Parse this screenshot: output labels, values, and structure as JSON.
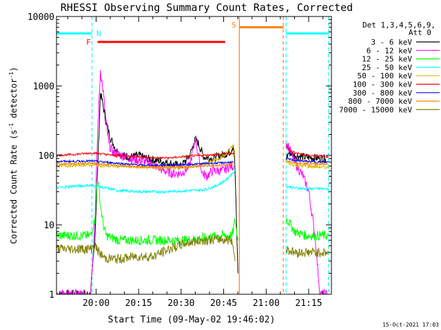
{
  "chart_data": {
    "type": "line",
    "title": "RHESSI Observing Summary Count Rates, Corrected",
    "xlabel": "Start Time (09-May-02 19:46:02)",
    "ylabel": "Corrected Count Rate (s^-1 detector^-1)",
    "ylabel_parts": {
      "main": "Corrected Count Rate (s",
      "exp1": "-1",
      "mid": " detector",
      "exp2": "-1",
      "end": ")"
    },
    "x_units": "minutes after 19:46:02",
    "xlim": [
      0,
      97
    ],
    "ylim": [
      1,
      10000
    ],
    "yscale": "log",
    "x_ticks": [
      {
        "x": 13.97,
        "label": "20:00"
      },
      {
        "x": 28.97,
        "label": "20:15"
      },
      {
        "x": 43.97,
        "label": "20:30"
      },
      {
        "x": 58.97,
        "label": "20:45"
      },
      {
        "x": 73.97,
        "label": "21:00"
      },
      {
        "x": 88.97,
        "label": "21:15"
      }
    ],
    "y_ticks": [
      {
        "y": 1,
        "label": "1"
      },
      {
        "y": 10,
        "label": "10"
      },
      {
        "y": 100,
        "label": "100"
      },
      {
        "y": 1000,
        "label": "1000"
      },
      {
        "y": 10000,
        "label": "10000"
      }
    ],
    "legend_header": [
      "Det 1,3,4,5,6,9,",
      "Att 0"
    ],
    "legend_placement": "right",
    "series": [
      {
        "name": "3 - 6 keV",
        "color": "#000000",
        "points": [
          [
            0,
            1
          ],
          [
            12,
            1
          ],
          [
            13.5,
            6
          ],
          [
            14.5,
            60
          ],
          [
            15.5,
            800
          ],
          [
            16.5,
            500
          ],
          [
            17.5,
            300
          ],
          [
            19,
            180
          ],
          [
            21,
            120
          ],
          [
            23,
            100
          ],
          [
            26,
            95
          ],
          [
            29,
            100
          ],
          [
            32,
            90
          ],
          [
            35,
            85
          ],
          [
            38,
            80
          ],
          [
            41,
            75
          ],
          [
            44,
            70
          ],
          [
            47,
            100
          ],
          [
            49,
            170
          ],
          [
            50,
            150
          ],
          [
            52,
            95
          ],
          [
            55,
            90
          ],
          [
            58,
            100
          ],
          [
            61,
            110
          ],
          [
            62.5,
            140
          ],
          [
            63,
            60
          ],
          [
            64,
            2
          ]
        ],
        "points2": [
          [
            81,
            90
          ],
          [
            82,
            110
          ],
          [
            84,
            100
          ],
          [
            87,
            95
          ],
          [
            91,
            92
          ],
          [
            95,
            90
          ]
        ]
      },
      {
        "name": "6 - 12 keV",
        "color": "#ff00ff",
        "points": [
          [
            0,
            1
          ],
          [
            12,
            1
          ],
          [
            13.5,
            10
          ],
          [
            14.5,
            200
          ],
          [
            15.5,
            1700
          ],
          [
            16.5,
            800
          ],
          [
            17.5,
            300
          ],
          [
            18.5,
            140
          ],
          [
            20,
            110
          ],
          [
            23,
            100
          ],
          [
            26,
            90
          ],
          [
            29,
            85
          ],
          [
            32,
            80
          ],
          [
            35,
            70
          ],
          [
            38,
            60
          ],
          [
            41,
            55
          ],
          [
            44,
            55
          ],
          [
            47,
            70
          ],
          [
            49,
            180
          ],
          [
            50,
            100
          ],
          [
            51.5,
            55
          ],
          [
            53,
            50
          ],
          [
            55,
            60
          ],
          [
            57,
            60
          ],
          [
            59,
            60
          ],
          [
            61,
            70
          ],
          [
            62.5,
            70
          ]
        ],
        "points2": [
          [
            81,
            150
          ],
          [
            82,
            130
          ],
          [
            84,
            80
          ],
          [
            87,
            50
          ],
          [
            89,
            30
          ],
          [
            91,
            8
          ],
          [
            93,
            1
          ],
          [
            96,
            1
          ]
        ]
      },
      {
        "name": "12 - 25 keV",
        "color": "#00ff00",
        "points": [
          [
            0,
            7
          ],
          [
            12,
            7
          ],
          [
            13.5,
            12
          ],
          [
            14.5,
            50
          ],
          [
            15.5,
            20
          ],
          [
            16.5,
            10
          ],
          [
            17.5,
            7
          ],
          [
            22,
            6
          ],
          [
            30,
            6
          ],
          [
            38,
            6
          ],
          [
            46,
            6
          ],
          [
            52,
            6.5
          ],
          [
            58,
            7
          ],
          [
            62,
            7
          ],
          [
            63,
            12
          ],
          [
            64,
            6
          ]
        ],
        "points2": [
          [
            81,
            12
          ],
          [
            82,
            11
          ],
          [
            84,
            8
          ],
          [
            88,
            7
          ],
          [
            93,
            7
          ],
          [
            96,
            7
          ]
        ]
      },
      {
        "name": "25 - 50 keV",
        "color": "#00ffff",
        "points": [
          [
            0,
            34
          ],
          [
            6,
            36
          ],
          [
            12,
            37
          ],
          [
            14,
            36
          ],
          [
            17,
            34
          ],
          [
            22,
            31
          ],
          [
            30,
            30
          ],
          [
            38,
            30
          ],
          [
            46,
            31
          ],
          [
            52,
            32
          ],
          [
            56,
            36
          ],
          [
            58,
            40
          ],
          [
            60,
            45
          ],
          [
            62,
            55
          ],
          [
            63,
            60
          ]
        ],
        "points2": [
          [
            81,
            36
          ],
          [
            84,
            34
          ],
          [
            88,
            33
          ],
          [
            93,
            33
          ],
          [
            96,
            33
          ]
        ]
      },
      {
        "name": "50 - 100 keV",
        "color": "#ddbb00",
        "points": [
          [
            0,
            70
          ],
          [
            6,
            72
          ],
          [
            12,
            73
          ],
          [
            14,
            72
          ],
          [
            20,
            70
          ],
          [
            30,
            68
          ],
          [
            40,
            66
          ],
          [
            46,
            68
          ],
          [
            52,
            75
          ],
          [
            56,
            85
          ],
          [
            59,
            100
          ],
          [
            61,
            120
          ],
          [
            62.5,
            140
          ],
          [
            63,
            90
          ]
        ],
        "points2": [
          [
            81,
            80
          ],
          [
            84,
            72
          ],
          [
            88,
            70
          ],
          [
            93,
            68
          ],
          [
            96,
            67
          ]
        ]
      },
      {
        "name": "100 - 300 keV",
        "color": "#ff0000",
        "points": [
          [
            0,
            100
          ],
          [
            6,
            103
          ],
          [
            12,
            108
          ],
          [
            14,
            108
          ],
          [
            20,
            100
          ],
          [
            25,
            98
          ],
          [
            30,
            95
          ],
          [
            35,
            92
          ],
          [
            40,
            92
          ],
          [
            44,
            95
          ],
          [
            48,
            98
          ],
          [
            52,
            100
          ],
          [
            56,
            103
          ],
          [
            60,
            105
          ],
          [
            62.5,
            108
          ]
        ],
        "points2": [
          [
            81,
            140
          ],
          [
            82,
            120
          ],
          [
            84,
            110
          ],
          [
            88,
            100
          ],
          [
            93,
            98
          ],
          [
            96,
            96
          ]
        ]
      },
      {
        "name": "300 - 800 keV",
        "color": "#0000ff",
        "points": [
          [
            0,
            82
          ],
          [
            6,
            82
          ],
          [
            12,
            83
          ],
          [
            14,
            82
          ],
          [
            20,
            78
          ],
          [
            30,
            72
          ],
          [
            38,
            72
          ],
          [
            46,
            74
          ],
          [
            52,
            76
          ],
          [
            58,
            78
          ],
          [
            62.5,
            80
          ]
        ],
        "points2": [
          [
            81,
            90
          ],
          [
            84,
            85
          ],
          [
            88,
            82
          ],
          [
            93,
            80
          ],
          [
            96,
            80
          ]
        ]
      },
      {
        "name": "800 - 7000 keV",
        "color": "#ff8000",
        "points": [
          [
            0,
            76
          ],
          [
            6,
            76
          ],
          [
            12,
            77
          ],
          [
            14,
            76
          ],
          [
            20,
            72
          ],
          [
            30,
            68
          ],
          [
            38,
            67
          ],
          [
            46,
            68
          ],
          [
            52,
            70
          ],
          [
            58,
            72
          ],
          [
            62.5,
            75
          ]
        ],
        "points2": [
          [
            81,
            84
          ],
          [
            84,
            79
          ],
          [
            88,
            76
          ],
          [
            93,
            75
          ],
          [
            96,
            75
          ]
        ]
      },
      {
        "name": "7000 - 15000 keV",
        "color": "#808000",
        "points": [
          [
            0,
            4.5
          ],
          [
            12,
            4.5
          ],
          [
            13.5,
            5
          ],
          [
            15,
            4
          ],
          [
            17,
            3.3
          ],
          [
            22,
            3.2
          ],
          [
            28,
            3.5
          ],
          [
            34,
            3.5
          ],
          [
            40,
            4.5
          ],
          [
            46,
            5.5
          ],
          [
            52,
            6
          ],
          [
            58,
            6.2
          ],
          [
            62,
            6
          ],
          [
            63,
            3
          ]
        ],
        "points2": [
          [
            81,
            4.5
          ],
          [
            84,
            4
          ],
          [
            88,
            4
          ],
          [
            93,
            4
          ],
          [
            96,
            4
          ]
        ]
      }
    ],
    "annotations": [
      {
        "label": "N",
        "x": 14.9,
        "y": 5700,
        "color": "#00ffff"
      },
      {
        "label": "F",
        "x": 11.3,
        "y": 4300,
        "color": "#ff0000"
      },
      {
        "label": "S",
        "x": 62.6,
        "y": 7600,
        "color": "#ff8000"
      }
    ],
    "flag_bars": [
      {
        "name": "night",
        "color": "#00ffff",
        "x": [
          0,
          12.5
        ],
        "y": 5700
      },
      {
        "name": "night",
        "color": "#00ffff",
        "x": [
          81,
          96
        ],
        "y": 5700
      },
      {
        "name": "flare",
        "color": "#ff0000",
        "x": [
          14.5,
          59.5
        ],
        "y": 4300
      },
      {
        "name": "saa",
        "color": "#ff8000",
        "x": [
          64.5,
          80
        ],
        "y": 7000
      }
    ],
    "vertical_lines": [
      {
        "x": 12.5,
        "color": "#00ffff",
        "dashed": true
      },
      {
        "x": 81,
        "color": "#00ffff",
        "dashed": true
      },
      {
        "x": 96,
        "color": "#00ffff",
        "dashed": true
      },
      {
        "x": 64.5,
        "color": "#ff8000",
        "dashed": false
      },
      {
        "x": 80,
        "color": "#ff8000",
        "dashed": true
      }
    ]
  },
  "footer": {
    "timestamp": "15-Oct-2021 17:03"
  }
}
